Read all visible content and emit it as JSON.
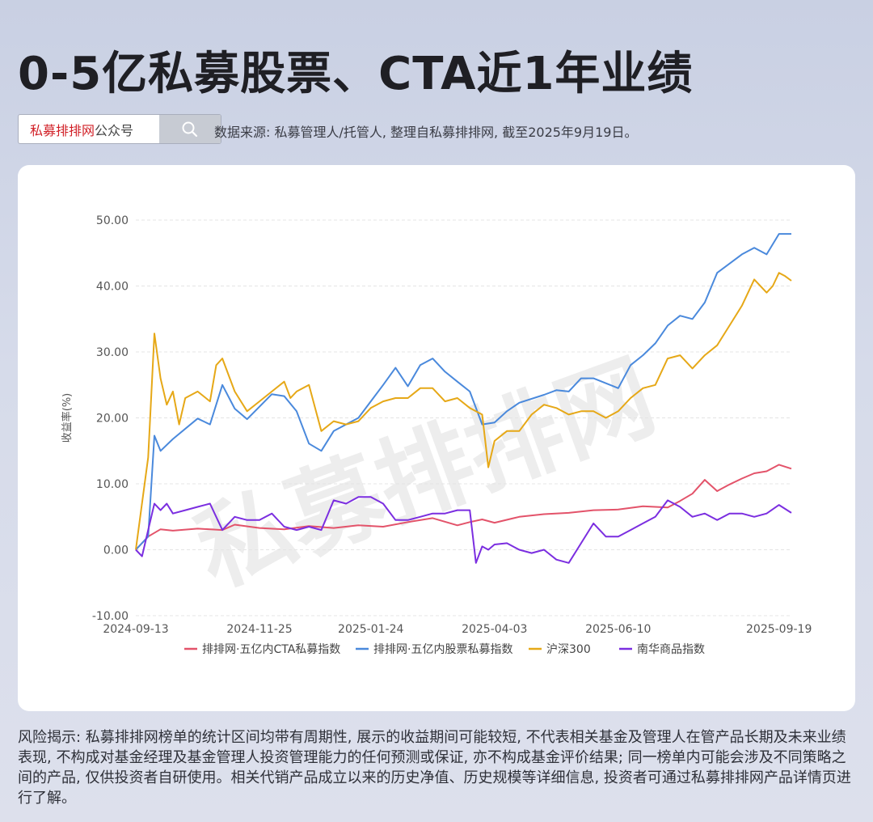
{
  "header": {
    "title": "0-5亿私募股票、CTA近1年业绩",
    "search_brand": "私募排排网",
    "search_suffix": "公众号",
    "source_note": "数据来源: 私募管理人/托管人, 整理自私募排排网, 截至2025年9月19日。"
  },
  "watermark": "私募排排网",
  "chart_data": {
    "type": "line",
    "title": "",
    "xlabel": "",
    "ylabel": "收益率(%)",
    "ylim": [
      -10,
      50
    ],
    "yticks": [
      -10,
      0,
      10,
      20,
      30,
      40,
      50
    ],
    "ytick_labels": [
      "-10.00",
      "0.00",
      "10.00",
      "20.00",
      "30.00",
      "40.00",
      "50.00"
    ],
    "x_range": [
      0,
      53
    ],
    "x_tick_positions": [
      0,
      10,
      19,
      29,
      39,
      52
    ],
    "x_tick_labels": [
      "2024-09-13",
      "2024-11-25",
      "2025-01-24",
      "2025-04-03",
      "2025-06-10",
      "2025-09-19"
    ],
    "x_unit": "weeks since 2024-09-13",
    "legend_position": "bottom",
    "series": [
      {
        "name": "排排网·五亿内CTA私募指数",
        "color": "#e3536a",
        "x": [
          0,
          1,
          2,
          3,
          5,
          7,
          8,
          10,
          12,
          14,
          16,
          18,
          20,
          22,
          24,
          26,
          27,
          28,
          29,
          31,
          33,
          35,
          37,
          39,
          41,
          43,
          44,
          45,
          46,
          47,
          48,
          49,
          50,
          51,
          52,
          53
        ],
        "y": [
          0,
          2.0,
          3.1,
          2.9,
          3.2,
          3.0,
          3.8,
          3.3,
          3.1,
          3.6,
          3.3,
          3.7,
          3.5,
          4.2,
          4.8,
          3.7,
          4.2,
          4.6,
          4.1,
          5.0,
          5.4,
          5.6,
          6.0,
          6.1,
          6.6,
          6.4,
          7.4,
          8.5,
          10.6,
          8.9,
          9.9,
          10.8,
          11.6,
          11.9,
          12.9,
          12.3
        ]
      },
      {
        "name": "排排网·五亿内股票私募指数",
        "color": "#4a89dc",
        "x": [
          0,
          1,
          1.5,
          2,
          3,
          5,
          6,
          7,
          8,
          9,
          11,
          12,
          13,
          14,
          15,
          16,
          18,
          19,
          20,
          21,
          22,
          23,
          24,
          25,
          26,
          27,
          28,
          29,
          30,
          31,
          33,
          34,
          35,
          36,
          37,
          39,
          40,
          41,
          42,
          43,
          44,
          45,
          46,
          47,
          49,
          50,
          51,
          52,
          53
        ],
        "y": [
          0,
          2.0,
          17.3,
          15.0,
          16.8,
          19.9,
          19.0,
          25.0,
          21.4,
          19.8,
          23.6,
          23.3,
          21.0,
          16.1,
          15.0,
          18.0,
          20.0,
          22.5,
          25.0,
          27.6,
          24.8,
          28.0,
          29.0,
          27.0,
          25.5,
          24.0,
          19.0,
          19.3,
          21.0,
          22.3,
          23.5,
          24.2,
          24.0,
          26.0,
          26.0,
          24.5,
          28.0,
          29.5,
          31.3,
          34.0,
          35.5,
          35.0,
          37.5,
          42.0,
          44.8,
          45.8,
          44.8,
          47.9,
          47.9
        ]
      },
      {
        "name": "沪深300",
        "color": "#e6a817",
        "x": [
          0,
          1,
          1.5,
          2,
          2.5,
          3,
          3.5,
          4,
          5,
          6,
          6.5,
          7,
          8,
          9,
          10,
          11,
          12,
          12.5,
          13,
          14,
          15,
          16,
          17,
          18,
          19,
          20,
          21,
          22,
          23,
          24,
          25,
          26,
          27,
          28,
          28.5,
          29,
          30,
          31,
          32,
          33,
          34,
          35,
          36,
          37,
          38,
          39,
          40,
          41,
          42,
          43,
          44,
          45,
          46,
          47,
          48,
          49,
          50,
          51,
          51.5,
          52,
          52.5,
          53
        ],
        "y": [
          0,
          14.0,
          32.8,
          26.0,
          22.0,
          24.0,
          19.0,
          23.0,
          24.0,
          22.5,
          28.0,
          29.0,
          24.0,
          21.0,
          22.5,
          24.0,
          25.5,
          23.0,
          24.0,
          25.0,
          18.0,
          19.5,
          19.0,
          19.5,
          21.5,
          22.5,
          23.0,
          23.0,
          24.5,
          24.5,
          22.5,
          23.0,
          21.5,
          20.5,
          12.5,
          16.5,
          18.0,
          18.0,
          20.5,
          22.0,
          21.5,
          20.5,
          21.0,
          21.0,
          20.0,
          21.0,
          23.0,
          24.5,
          25.0,
          29.0,
          29.5,
          27.5,
          29.5,
          31.0,
          34.0,
          37.0,
          41.0,
          39.0,
          40.0,
          42.0,
          41.5,
          40.8
        ]
      },
      {
        "name": "南华商品指数",
        "color": "#7b2ee0",
        "x": [
          0,
          0.5,
          1,
          1.5,
          2,
          2.5,
          3,
          4,
          5,
          6,
          7,
          8,
          9,
          10,
          11,
          12,
          13,
          14,
          15,
          16,
          17,
          18,
          19,
          20,
          21,
          22,
          23,
          24,
          25,
          26,
          27,
          27.5,
          28,
          28.5,
          29,
          30,
          31,
          32,
          33,
          34,
          35,
          36,
          37,
          38,
          39,
          40,
          41,
          42,
          43,
          44,
          45,
          46,
          47,
          48,
          49,
          50,
          51,
          52,
          53
        ],
        "y": [
          0,
          -1.0,
          3.0,
          7.0,
          6.0,
          7.0,
          5.5,
          6.0,
          6.5,
          7.0,
          3.0,
          5.0,
          4.5,
          4.5,
          5.5,
          3.5,
          3.0,
          3.5,
          3.0,
          7.5,
          7.0,
          8.0,
          8.0,
          7.0,
          4.5,
          4.5,
          5.0,
          5.5,
          5.5,
          6.0,
          6.0,
          -2.0,
          0.5,
          0.0,
          0.8,
          1.0,
          0.0,
          -0.5,
          0.0,
          -1.5,
          -2.0,
          1.0,
          4.0,
          2.0,
          2.0,
          3.0,
          4.0,
          5.0,
          7.5,
          6.5,
          5.0,
          5.5,
          4.5,
          5.5,
          5.5,
          5.0,
          5.5,
          6.8,
          5.6
        ]
      }
    ]
  },
  "risk_note": "风险揭示: 私募排排网榜单的统计区间均带有周期性, 展示的收益期间可能较短, 不代表相关基金及管理人在管产品长期及未来业绩表现, 不构成对基金经理及基金管理人投资管理能力的任何预测或保证, 亦不构成基金评价结果; 同一榜单内可能会涉及不同策略之间的产品, 仅供投资者自研使用。相关代销产品成立以来的历史净值、历史规模等详细信息, 投资者可通过私募排排网产品详情页进行了解。"
}
